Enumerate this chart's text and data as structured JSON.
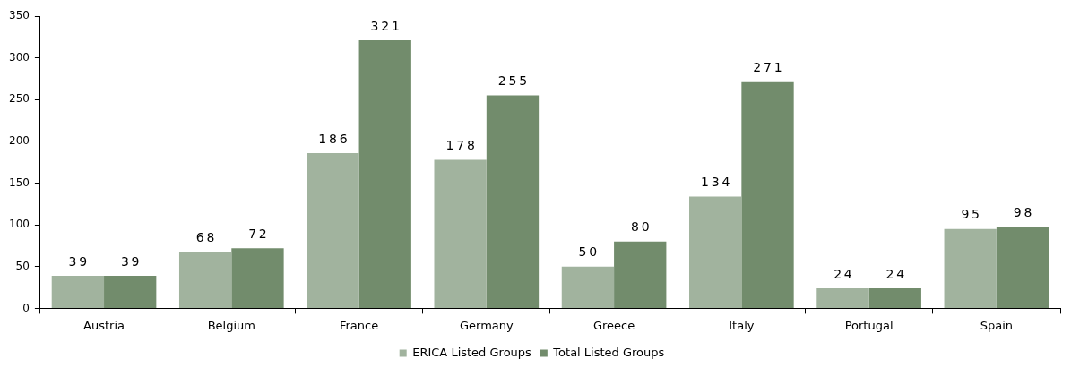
{
  "chart_data": {
    "type": "bar",
    "categories": [
      "Austria",
      "Belgium",
      "France",
      "Germany",
      "Greece",
      "Italy",
      "Portugal",
      "Spain"
    ],
    "series": [
      {
        "name": "ERICA Listed Groups",
        "color": "#a1b39e",
        "values": [
          39,
          68,
          186,
          178,
          50,
          134,
          24,
          95
        ]
      },
      {
        "name": "Total Listed Groups",
        "color": "#728c6c",
        "values": [
          39,
          72,
          321,
          255,
          80,
          271,
          24,
          98
        ]
      }
    ],
    "ylim": [
      0,
      350
    ],
    "yticks": [
      0,
      50,
      100,
      150,
      200,
      250,
      300,
      350
    ],
    "grid": false,
    "legend": "bottom",
    "data_labels": true
  }
}
